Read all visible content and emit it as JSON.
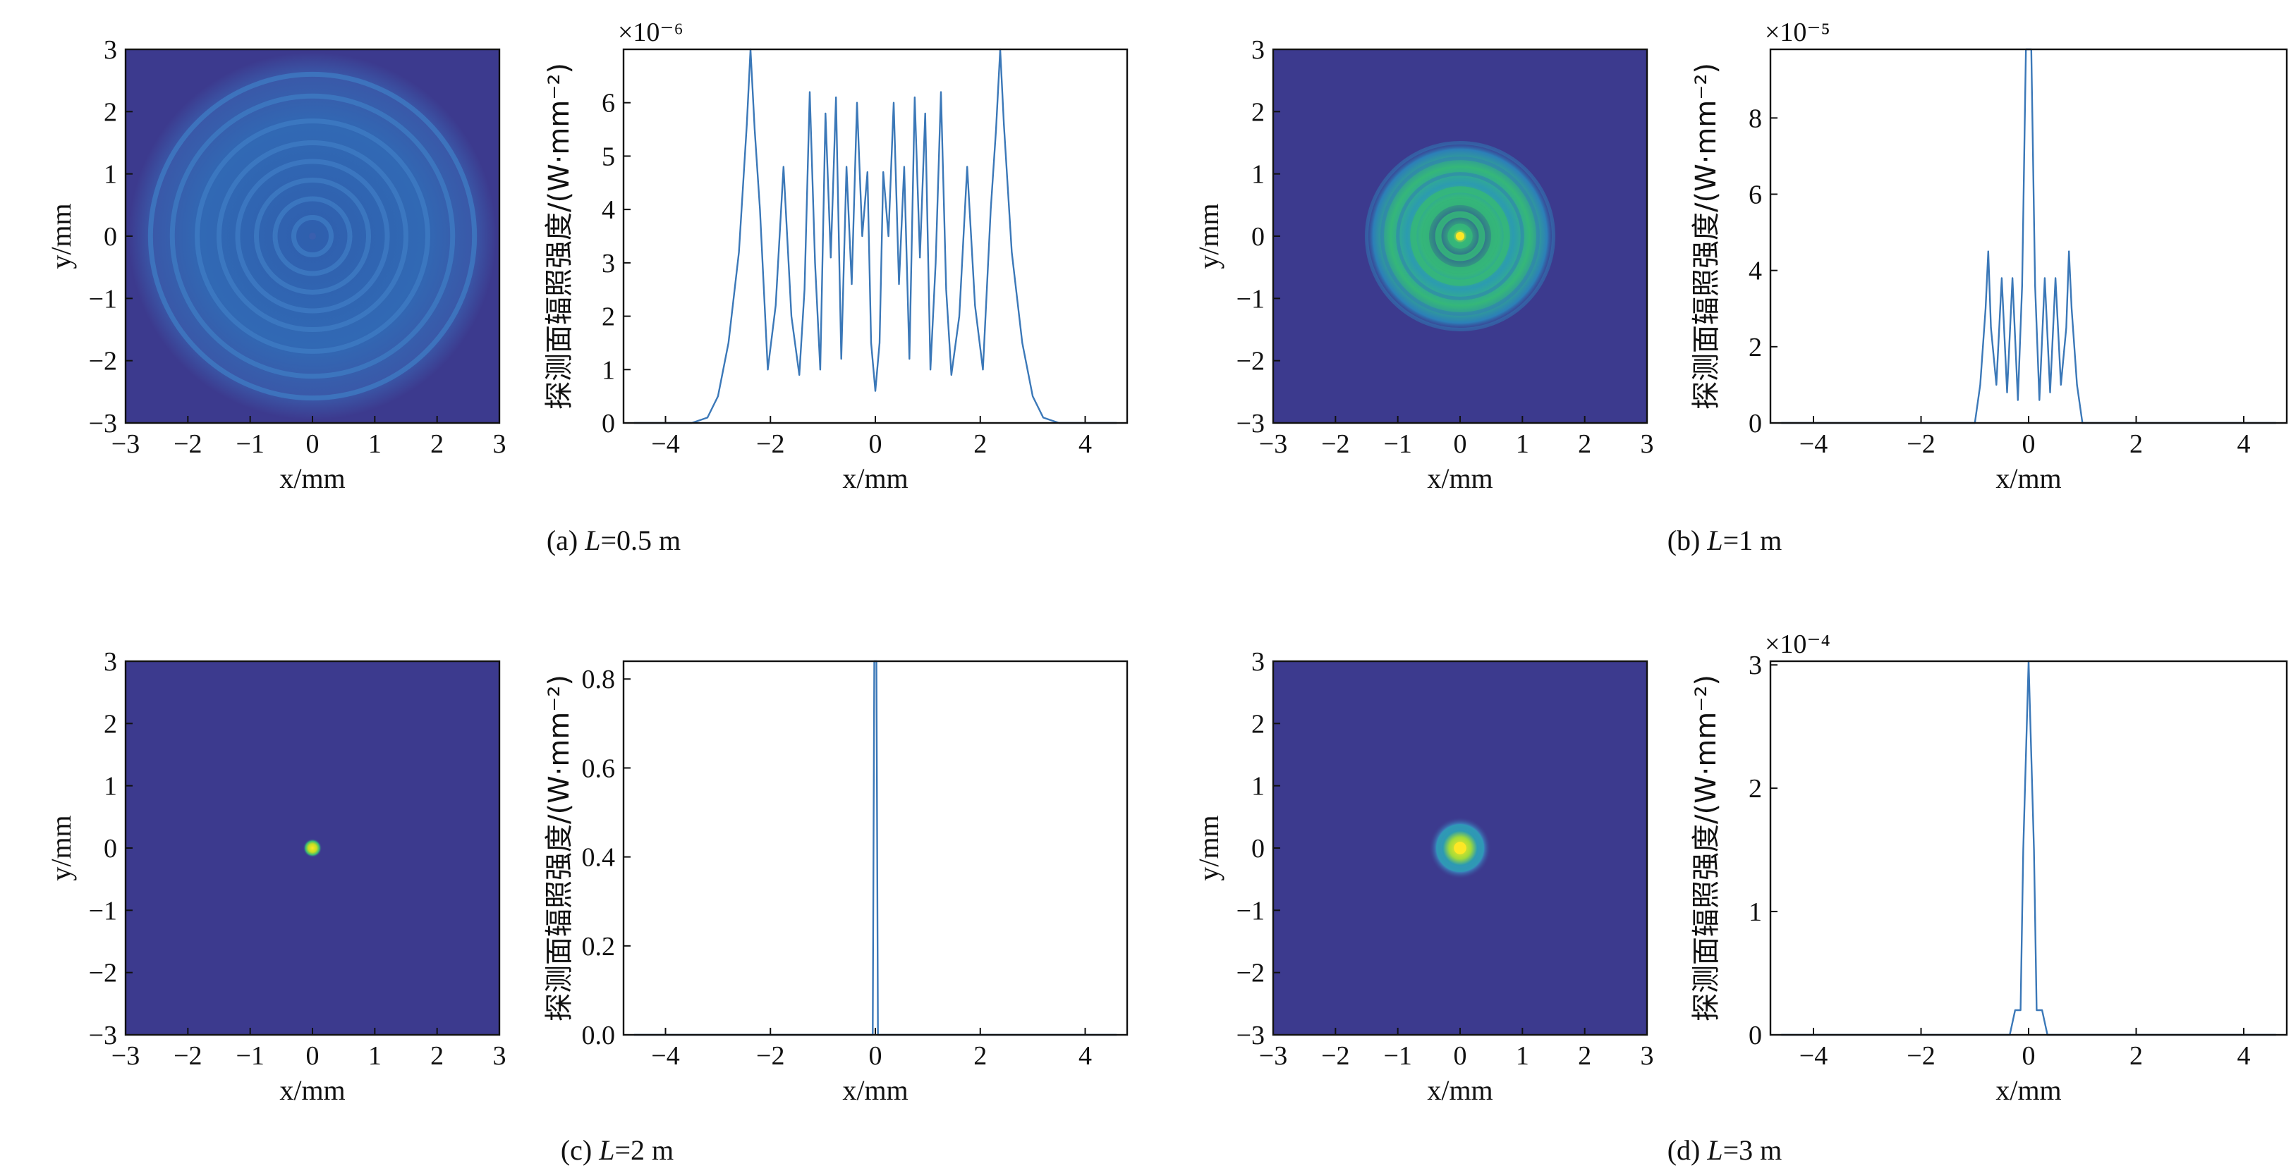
{
  "figure": {
    "panels": [
      {
        "id": "a",
        "caption": {
          "prefix": "(a) ",
          "var": "L",
          "suffix": "=0.5 m"
        },
        "map": {
          "xlabel": "x/mm",
          "ylabel": "y/mm",
          "xticks": [
            "−3",
            "−2",
            "−1",
            "0",
            "1",
            "2",
            "3"
          ],
          "yticks": [
            "3",
            "2",
            "1",
            "0",
            "−1",
            "−2",
            "−3"
          ],
          "pattern": "rings-wide",
          "colors": {
            "background": "#3c3a8e",
            "ring": "#3f7cc4"
          }
        },
        "profile": {
          "xlabel": "x/mm",
          "ylabel": "探测面辐照强度/(W·mm⁻²)",
          "exponent": "×10⁻⁶",
          "xticks": [
            "−4",
            "−2",
            "0",
            "2",
            "4"
          ],
          "yticks": [
            "0",
            "1",
            "2",
            "3",
            "4",
            "5",
            "6"
          ]
        }
      },
      {
        "id": "b",
        "caption": {
          "prefix": "(b) ",
          "var": "L",
          "suffix": "=1 m"
        },
        "map": {
          "xlabel": "x/mm",
          "ylabel": "y/mm",
          "xticks": [
            "−3",
            "−2",
            "−1",
            "0",
            "1",
            "2",
            "3"
          ],
          "yticks": [
            "3",
            "2",
            "1",
            "0",
            "−1",
            "−2",
            "−3"
          ],
          "pattern": "rings-medium",
          "colors": {
            "background": "#3c3a8e",
            "ring": "#35b779"
          }
        },
        "profile": {
          "xlabel": "x/mm",
          "ylabel": "探测面辐照强度/(W·mm⁻²)",
          "exponent": "×10⁻⁵",
          "xticks": [
            "−4",
            "−2",
            "0",
            "2",
            "4"
          ],
          "yticks": [
            "0",
            "2",
            "4",
            "6",
            "8"
          ]
        }
      },
      {
        "id": "c",
        "caption": {
          "prefix": "(c) ",
          "var": "L",
          "suffix": "=2 m"
        },
        "map": {
          "xlabel": "x/mm",
          "ylabel": "y/mm",
          "xticks": [
            "−3",
            "−2",
            "−1",
            "0",
            "1",
            "2",
            "3"
          ],
          "yticks": [
            "3",
            "2",
            "1",
            "0",
            "−1",
            "−2",
            "−3"
          ],
          "pattern": "spot",
          "colors": {
            "background": "#3c3a8e",
            "ring": "#d9e533"
          }
        },
        "profile": {
          "xlabel": "x/mm",
          "ylabel": "探测面辐照强度/(W·mm⁻²)",
          "exponent": "",
          "xticks": [
            "−4",
            "−2",
            "0",
            "2",
            "4"
          ],
          "yticks": [
            "0.0",
            "0.2",
            "0.4",
            "0.6",
            "0.8"
          ]
        }
      },
      {
        "id": "d",
        "caption": {
          "prefix": "(d) ",
          "var": "L",
          "suffix": "=3 m"
        },
        "map": {
          "xlabel": "x/mm",
          "ylabel": "y/mm",
          "xticks": [
            "−3",
            "−2",
            "−1",
            "0",
            "1",
            "2",
            "3"
          ],
          "yticks": [
            "3",
            "2",
            "1",
            "0",
            "−1",
            "−2",
            "−3"
          ],
          "pattern": "spot-ring",
          "colors": {
            "background": "#3c3a8e",
            "ring": "#2c9bb0"
          }
        },
        "profile": {
          "xlabel": "x/mm",
          "ylabel": "探测面辐照强度/(W·mm⁻²)",
          "exponent": "×10⁻⁴",
          "xticks": [
            "−4",
            "−2",
            "0",
            "2",
            "4"
          ],
          "yticks": [
            "0",
            "1",
            "2",
            "3"
          ]
        }
      }
    ],
    "line_color": "#3b78b8"
  },
  "chart_data": [
    {
      "type": "heatmap",
      "panel": "a",
      "xlabel": "x/mm",
      "ylabel": "y/mm",
      "xlim": [
        -3,
        3
      ],
      "ylim": [
        -3,
        3
      ],
      "description_values": {
        "ring_radii_mm": [
          0.3,
          0.6,
          0.9,
          1.2,
          1.5,
          1.85,
          2.25,
          2.6
        ]
      }
    },
    {
      "type": "line",
      "panel": "a",
      "xlabel": "x/mm",
      "ylabel": "探测面辐照强度/(W·mm⁻²)",
      "yscale_factor": "1e-6",
      "xlim": [
        -4.8,
        4.8
      ],
      "ylim": [
        0,
        7
      ],
      "x": [
        -4.6,
        -3.5,
        -3.2,
        -3.0,
        -2.8,
        -2.6,
        -2.45,
        -2.38,
        -2.3,
        -2.2,
        -2.05,
        -1.9,
        -1.75,
        -1.6,
        -1.45,
        -1.35,
        -1.25,
        -1.15,
        -1.05,
        -0.95,
        -0.85,
        -0.75,
        -0.65,
        -0.55,
        -0.45,
        -0.35,
        -0.25,
        -0.15,
        -0.08,
        0.0,
        0.08,
        0.15,
        0.25,
        0.35,
        0.45,
        0.55,
        0.65,
        0.75,
        0.85,
        0.95,
        1.05,
        1.15,
        1.25,
        1.35,
        1.45,
        1.6,
        1.75,
        1.9,
        2.05,
        2.2,
        2.3,
        2.38,
        2.45,
        2.6,
        2.8,
        3.0,
        3.2,
        3.5,
        4.6
      ],
      "y": [
        0,
        0,
        0.1,
        0.5,
        1.5,
        3.2,
        5.6,
        7.0,
        5.5,
        4.0,
        1.0,
        2.2,
        4.8,
        2.0,
        0.9,
        2.5,
        6.2,
        3.0,
        1.0,
        5.8,
        3.1,
        6.1,
        1.2,
        4.8,
        2.6,
        6.0,
        3.5,
        4.7,
        1.5,
        0.6,
        1.5,
        4.7,
        3.5,
        6.0,
        2.6,
        4.8,
        1.2,
        6.1,
        3.1,
        5.8,
        1.0,
        3.0,
        6.2,
        2.5,
        0.9,
        2.0,
        4.8,
        2.2,
        1.0,
        4.0,
        5.5,
        7.0,
        5.6,
        3.2,
        1.5,
        0.5,
        0.1,
        0,
        0
      ]
    },
    {
      "type": "heatmap",
      "panel": "b",
      "xlabel": "x/mm",
      "ylabel": "y/mm",
      "xlim": [
        -3,
        3
      ],
      "ylim": [
        -3,
        3
      ],
      "description_values": {
        "ring_radii_mm": [
          0.15,
          0.35,
          0.55,
          0.75,
          1.0,
          1.25,
          1.5
        ]
      }
    },
    {
      "type": "line",
      "panel": "b",
      "xlabel": "x/mm",
      "ylabel": "探测面辐照强度/(W·mm⁻²)",
      "yscale_factor": "1e-5",
      "xlim": [
        -4.8,
        4.8
      ],
      "ylim": [
        0,
        9.8
      ],
      "x": [
        -4.6,
        -1.0,
        -0.9,
        -0.8,
        -0.75,
        -0.7,
        -0.6,
        -0.5,
        -0.4,
        -0.3,
        -0.2,
        -0.12,
        -0.05,
        0.0,
        0.05,
        0.12,
        0.2,
        0.3,
        0.4,
        0.5,
        0.6,
        0.7,
        0.75,
        0.8,
        0.9,
        1.0,
        4.6
      ],
      "y": [
        0,
        0,
        1.0,
        3.0,
        4.5,
        2.5,
        1.0,
        3.8,
        0.8,
        3.8,
        0.6,
        3.6,
        9.8,
        9.8,
        9.8,
        3.6,
        0.6,
        3.8,
        0.8,
        3.8,
        1.0,
        2.5,
        4.5,
        3.0,
        1.0,
        0,
        0
      ]
    },
    {
      "type": "heatmap",
      "panel": "c",
      "xlabel": "x/mm",
      "ylabel": "y/mm",
      "xlim": [
        -3,
        3
      ],
      "ylim": [
        -3,
        3
      ],
      "description_values": {
        "spot_radius_mm": 0.15
      }
    },
    {
      "type": "line",
      "panel": "c",
      "xlabel": "x/mm",
      "ylabel": "探测面辐照强度/(W·mm⁻²)",
      "xlim": [
        -4.8,
        4.8
      ],
      "ylim": [
        0,
        0.84
      ],
      "x": [
        -4.6,
        -0.05,
        -0.02,
        0.0,
        0.02,
        0.05,
        4.6
      ],
      "y": [
        0,
        0,
        0.84,
        0.84,
        0.84,
        0,
        0
      ]
    },
    {
      "type": "heatmap",
      "panel": "d",
      "xlabel": "x/mm",
      "ylabel": "y/mm",
      "xlim": [
        -3,
        3
      ],
      "ylim": [
        -3,
        3
      ],
      "description_values": {
        "spot_radius_mm": 0.15,
        "ring_radius_mm": 0.35
      }
    },
    {
      "type": "line",
      "panel": "d",
      "xlabel": "x/mm",
      "ylabel": "探测面辐照强度/(W·mm⁻²)",
      "yscale_factor": "1e-4",
      "xlim": [
        -4.8,
        4.8
      ],
      "ylim": [
        0,
        3.03
      ],
      "x": [
        -4.6,
        -0.35,
        -0.25,
        -0.15,
        -0.1,
        0.0,
        0.1,
        0.15,
        0.25,
        0.35,
        4.6
      ],
      "y": [
        0,
        0,
        0.2,
        0.2,
        1.5,
        3.03,
        1.5,
        0.2,
        0.2,
        0,
        0
      ]
    }
  ]
}
